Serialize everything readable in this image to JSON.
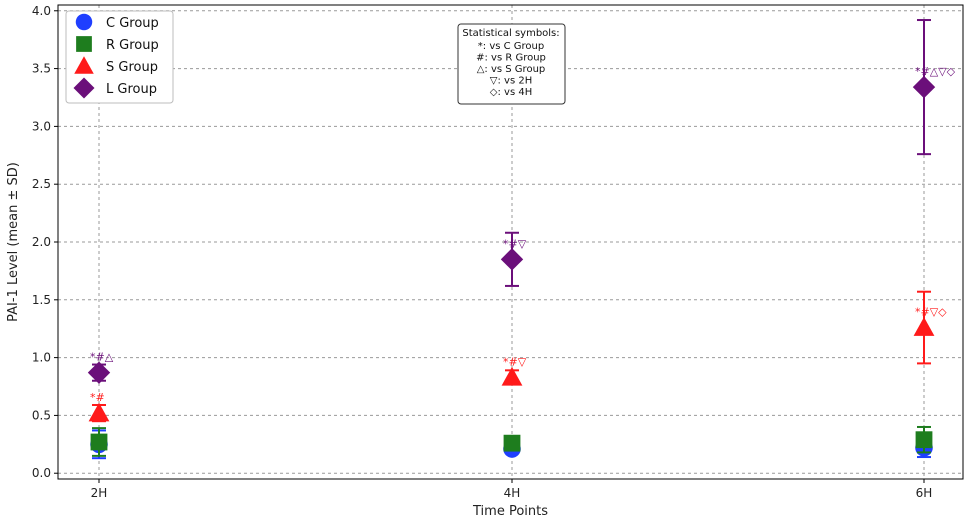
{
  "chart_data": {
    "type": "scatter",
    "title": "",
    "xlabel": "Time Points",
    "ylabel": "PAI-1 Level (mean ± SD)",
    "categories": [
      "2H",
      "4H",
      "6H"
    ],
    "ylim": [
      -0.05,
      4.05
    ],
    "yticks": [
      "0.0",
      "0.5",
      "1.0",
      "1.5",
      "2.0",
      "2.5",
      "3.0",
      "3.5",
      "4.0"
    ],
    "grid": true,
    "legend_position": "top-left",
    "series": [
      {
        "name": "C Group",
        "color": "#1f3fff",
        "marker": "circle",
        "values": [
          0.25,
          0.21,
          0.22
        ],
        "sd": [
          0.12,
          0.03,
          0.08
        ],
        "annotations": [
          "",
          "",
          ""
        ]
      },
      {
        "name": "R Group",
        "color": "#1e7d1e",
        "marker": "square",
        "values": [
          0.27,
          0.26,
          0.29
        ],
        "sd": [
          0.12,
          0.03,
          0.11
        ],
        "annotations": [
          "",
          "",
          ""
        ]
      },
      {
        "name": "S Group",
        "color": "#ff1a1a",
        "marker": "triangle",
        "values": [
          0.52,
          0.83,
          1.26
        ],
        "sd": [
          0.07,
          0.06,
          0.31
        ],
        "annotations": [
          "*#",
          "*#▽",
          "*#▽◇"
        ]
      },
      {
        "name": "L Group",
        "color": "#6b0f7a",
        "marker": "diamond",
        "values": [
          0.87,
          1.85,
          3.34
        ],
        "sd": [
          0.07,
          0.23,
          0.58
        ],
        "annotations": [
          "*#△",
          "*#▽",
          "*#△▽◇"
        ]
      }
    ],
    "stat_box": {
      "title": "Statistical symbols:",
      "lines": [
        "*: vs C Group",
        "#: vs R Group",
        "△: vs S Group",
        "▽: vs 2H",
        "◇: vs 4H"
      ]
    }
  }
}
